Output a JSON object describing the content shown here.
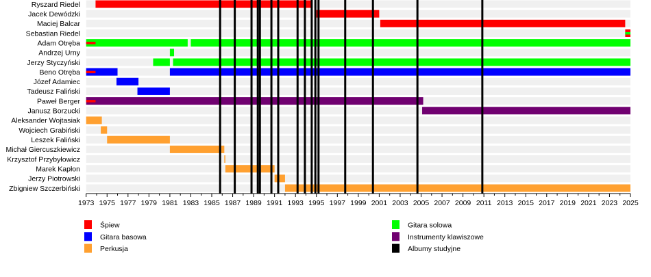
{
  "chart_data": {
    "type": "timeline",
    "title": "",
    "xlabel": "",
    "ylabel": "",
    "xlim": [
      1973,
      2025
    ],
    "x_tick_labels": [
      "1973",
      "1975",
      "1977",
      "1979",
      "1981",
      "1983",
      "1985",
      "1987",
      "1989",
      "1991",
      "1993",
      "1995",
      "1997",
      "1999",
      "2001",
      "2003",
      "2005",
      "2007",
      "2009",
      "2011",
      "2013",
      "2015",
      "2017",
      "2019",
      "2021",
      "2023",
      "2025"
    ],
    "colors": {
      "vocals": "#ff0000",
      "bass": "#0000ff",
      "drums": "#ffa030",
      "lead_guitar": "#00ff00",
      "keyboards": "#700070",
      "albums": "#000000"
    },
    "members": [
      {
        "name": "Ryszard Riedel",
        "bars": [
          {
            "role": "vocals",
            "start": 1973.9,
            "end": 1994.55
          }
        ]
      },
      {
        "name": "Jacek Dewódzki",
        "bars": [
          {
            "role": "vocals",
            "start": 1995.0,
            "end": 2001.0
          }
        ]
      },
      {
        "name": "Maciej Balcar",
        "bars": [
          {
            "role": "vocals",
            "start": 2001.1,
            "end": 2024.5
          }
        ]
      },
      {
        "name": "Sebastian Riedel",
        "bars": [
          {
            "role": "vocals",
            "start": 2024.5,
            "end": 2025
          }
        ],
        "stripes": [
          {
            "role": "lead_guitar",
            "start": 2024.5,
            "end": 2025
          }
        ]
      },
      {
        "name": "Adam Otręba",
        "bars": [
          {
            "role": "lead_guitar",
            "start": 1973,
            "end": 1982.7
          },
          {
            "role": "lead_guitar",
            "start": 1983.0,
            "end": 2025
          }
        ],
        "stripes": [
          {
            "role": "vocals",
            "start": 1973,
            "end": 1973.9
          }
        ]
      },
      {
        "name": "Andrzej Urny",
        "bars": [
          {
            "role": "lead_guitar",
            "start": 1981.0,
            "end": 1981.4
          }
        ]
      },
      {
        "name": "Jerzy Styczyński",
        "bars": [
          {
            "role": "lead_guitar",
            "start": 1979.4,
            "end": 1981.0
          },
          {
            "role": "lead_guitar",
            "start": 1981.3,
            "end": 2025
          }
        ]
      },
      {
        "name": "Beno Otręba",
        "bars": [
          {
            "role": "bass",
            "start": 1973,
            "end": 1976.0
          },
          {
            "role": "bass",
            "start": 1981.0,
            "end": 2025
          }
        ],
        "stripes": [
          {
            "role": "vocals",
            "start": 1973,
            "end": 1973.9
          }
        ]
      },
      {
        "name": "Józef Adamiec",
        "bars": [
          {
            "role": "bass",
            "start": 1975.9,
            "end": 1978.0
          }
        ]
      },
      {
        "name": "Tadeusz Faliński",
        "bars": [
          {
            "role": "bass",
            "start": 1977.9,
            "end": 1981.0
          }
        ]
      },
      {
        "name": "Paweł Berger",
        "bars": [
          {
            "role": "keyboards",
            "start": 1973,
            "end": 2005.2
          }
        ],
        "stripes": [
          {
            "role": "vocals",
            "start": 1973,
            "end": 1973.9
          }
        ]
      },
      {
        "name": "Janusz Borzucki",
        "bars": [
          {
            "role": "keyboards",
            "start": 2005.1,
            "end": 2025
          }
        ]
      },
      {
        "name": "Aleksander Wojtasiak",
        "bars": [
          {
            "role": "drums",
            "start": 1973,
            "end": 1974.5
          }
        ]
      },
      {
        "name": "Wojciech Grabiński",
        "bars": [
          {
            "role": "drums",
            "start": 1974.4,
            "end": 1975.0
          }
        ]
      },
      {
        "name": "Leszek Faliński",
        "bars": [
          {
            "role": "drums",
            "start": 1975.0,
            "end": 1981.0
          }
        ]
      },
      {
        "name": "Michał Giercuszkiewicz",
        "bars": [
          {
            "role": "drums",
            "start": 1981.0,
            "end": 1986.2
          }
        ]
      },
      {
        "name": "Krzysztof Przybyłowicz",
        "bars": [
          {
            "role": "drums",
            "start": 1986.2,
            "end": 1986.3
          }
        ]
      },
      {
        "name": "Marek Kapłon",
        "bars": [
          {
            "role": "drums",
            "start": 1986.3,
            "end": 1991.0
          }
        ]
      },
      {
        "name": "Jerzy Piotrowski",
        "bars": [
          {
            "role": "drums",
            "start": 1991.0,
            "end": 1992.0
          }
        ]
      },
      {
        "name": "Zbigniew Szczerbiński",
        "bars": [
          {
            "role": "drums",
            "start": 1992.0,
            "end": 2025
          }
        ]
      }
    ],
    "albums": [
      1985.8,
      1987.2,
      1988.8,
      1989.4,
      1989.6,
      1990.7,
      1991.35,
      1993.2,
      1993.9,
      1994.55,
      1994.9,
      1995.2,
      1997.75,
      2000.4,
      2004.65,
      2010.85
    ],
    "legend": [
      {
        "role": "vocals",
        "label": "Śpiew"
      },
      {
        "role": "bass",
        "label": "Gitara basowa"
      },
      {
        "role": "drums",
        "label": "Perkusja"
      },
      {
        "role": "lead_guitar",
        "label": "Gitara solowa"
      },
      {
        "role": "keyboards",
        "label": "Instrumenty klawiszowe"
      },
      {
        "role": "albums",
        "label": "Albumy studyjne"
      }
    ],
    "legend_placement": "bottom"
  }
}
